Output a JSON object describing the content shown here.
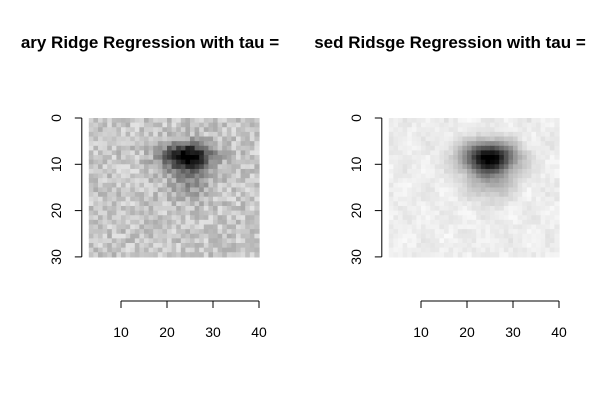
{
  "chart_data": [
    {
      "type": "heatmap",
      "title": "ary Ridge Regression with tau =",
      "variant": "noisy",
      "x_ticks": [
        "10",
        "20",
        "30",
        "40"
      ],
      "y_ticks": [
        "0",
        "10",
        "20",
        "30"
      ],
      "x_range": [
        10,
        40
      ],
      "y_range": [
        0,
        30
      ],
      "image_extent": {
        "x": [
          3,
          40
        ],
        "y": [
          0,
          30
        ]
      },
      "background_level": 0.78,
      "noise": 0.11,
      "blob": {
        "cx": 24.3,
        "cy": 8.3,
        "sx": 3.6,
        "sy": 2.0,
        "peak": 0.85
      },
      "tail": {
        "cx": 25,
        "cy": 13.5,
        "sx": 3.2,
        "sy": 2.8,
        "peak": 0.22
      },
      "shade_colors": {
        "dark": "#000000",
        "light": "#ffffff"
      }
    },
    {
      "type": "heatmap",
      "title": "sed Ridsge Regression with tau =",
      "variant": "smooth",
      "x_ticks": [
        "10",
        "20",
        "30",
        "40"
      ],
      "y_ticks": [
        "0",
        "10",
        "20",
        "30"
      ],
      "x_range": [
        10,
        40
      ],
      "y_range": [
        0,
        30
      ],
      "image_extent": {
        "x": [
          3,
          40
        ],
        "y": [
          0,
          30
        ]
      },
      "background_level": 0.93,
      "noise": 0.03,
      "blob": {
        "cx": 24.8,
        "cy": 8.5,
        "sx": 4.0,
        "sy": 2.3,
        "peak": 0.9
      },
      "tail": {
        "cx": 25,
        "cy": 13.5,
        "sx": 3.5,
        "sy": 3.0,
        "peak": 0.25
      },
      "shade_colors": {
        "dark": "#000000",
        "light": "#ffffff"
      }
    }
  ]
}
